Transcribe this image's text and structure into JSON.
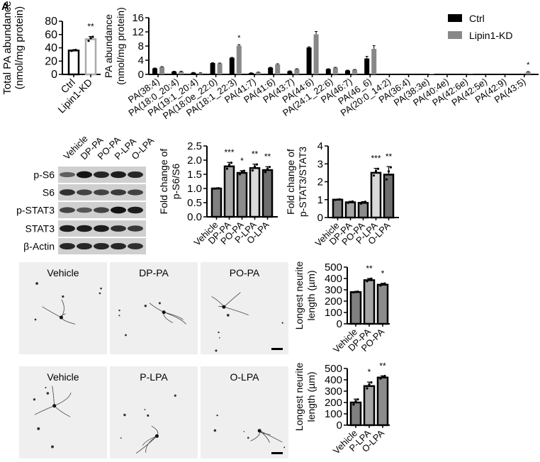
{
  "panel_label": "A",
  "chart_data": [
    {
      "id": "total-pa",
      "type": "bar",
      "ylabel": [
        "Total PA abundance",
        "(nmol/mg protein)"
      ],
      "categories": [
        "Ctrl",
        "Lipin1-KD"
      ],
      "values": [
        36,
        53
      ],
      "errors": [
        1,
        4
      ],
      "significance": [
        "",
        "**"
      ],
      "yticks": [
        0,
        20,
        40,
        60,
        80
      ],
      "ylim": [
        0,
        80
      ],
      "bar_fill": [
        "#ffffff",
        "#ffffff"
      ],
      "bar_stroke": [
        "#000000",
        "#aaaaaa"
      ]
    },
    {
      "id": "pa-species",
      "type": "bar",
      "ylabel": [
        "PA abundance",
        "(nmol/mg protein)"
      ],
      "categories": [
        "PA(38:4)",
        "PA(18:0_20:4)",
        "PA(19:1_20:4)",
        "PA(18:0e_22:0)",
        "PA(18:1_22:3)",
        "PA(41:7)",
        "PA(41:6)",
        "PA(43:7)",
        "PA(44:6)",
        "PA(24:1_22:6)",
        "PA(46:7)",
        "PA(46_6)",
        "PA(20:0_14:2)",
        "PA(36:4)",
        "PA(38:3e)",
        "PA(40:4e)",
        "PA(42:6e)",
        "PA(42:5e)",
        "PA(42:9)",
        "PA(43:5)"
      ],
      "series": [
        {
          "name": "Ctrl",
          "color": "#000000",
          "values": [
            1.7,
            0.8,
            0.5,
            3.2,
            4.7,
            0.4,
            1.9,
            0.9,
            7.6,
            1.5,
            1.1,
            4.5,
            0,
            0,
            0.05,
            0,
            0.1,
            0,
            0,
            0.2
          ]
        },
        {
          "name": "Lipin1-KD",
          "color": "#888888",
          "values": [
            2.1,
            0.8,
            0.4,
            3.1,
            8.1,
            0.6,
            2.8,
            1.5,
            11.3,
            1.9,
            1.3,
            7.2,
            0,
            0,
            0.2,
            0,
            0.1,
            0,
            0,
            0.7
          ]
        }
      ],
      "errors": [
        [
          0.1,
          0.1,
          0.05,
          0.1,
          0.1,
          0.05,
          0.1,
          0.1,
          0.2,
          0.1,
          0.1,
          0.6,
          0,
          0,
          0,
          0,
          0,
          0,
          0,
          0
        ],
        [
          0.1,
          0.1,
          0.05,
          0.1,
          0.3,
          0.05,
          0.2,
          0.1,
          0.8,
          0.1,
          0.1,
          0.9,
          0,
          0,
          0,
          0,
          0,
          0,
          0,
          0.1
        ]
      ],
      "significance": [
        "",
        "",
        "",
        "",
        "*",
        "",
        "",
        "",
        "",
        "",
        "",
        "",
        "",
        "",
        "",
        "",
        "",
        "",
        "",
        "*"
      ],
      "yticks": [
        0,
        4,
        8,
        12,
        16
      ],
      "ylim": [
        0,
        16
      ],
      "legend": "top-right"
    },
    {
      "id": "ps6",
      "type": "bar",
      "ylabel": [
        "Fold change of",
        "p-S6/S6"
      ],
      "categories": [
        "Vehicle",
        "DP-PA",
        "PO-PA",
        "P-LPA",
        "O-LPA"
      ],
      "values": [
        1.0,
        1.78,
        1.55,
        1.72,
        1.65
      ],
      "errors": [
        0.01,
        0.14,
        0.08,
        0.14,
        0.12
      ],
      "significance": [
        "",
        "***",
        "*",
        "**",
        "**"
      ],
      "yticks": [
        "0.0",
        "0.5",
        "1.0",
        "1.5",
        "2.0",
        "2.5"
      ],
      "ylim": [
        0,
        2.5
      ],
      "bar_fill": [
        "#808080",
        "#a6a6a6",
        "#8c8c8c",
        "#d9d9d9",
        "#6e6e6e"
      ]
    },
    {
      "id": "pstat3",
      "type": "bar",
      "ylabel": [
        "Fold change of",
        "p-STAT3/STAT3"
      ],
      "categories": [
        "Vehicle",
        "DP-PA",
        "PO-PA",
        "P-LPA",
        "O-LPA"
      ],
      "values": [
        1.0,
        0.85,
        0.82,
        2.5,
        2.4
      ],
      "errors": [
        0.02,
        0.05,
        0.07,
        0.25,
        0.45
      ],
      "significance": [
        "",
        "",
        "",
        "***",
        "**"
      ],
      "yticks": [
        0,
        1,
        2,
        3,
        4
      ],
      "ylim": [
        0,
        4
      ],
      "bar_fill": [
        "#808080",
        "#a6a6a6",
        "#8c8c8c",
        "#d9d9d9",
        "#6e6e6e"
      ]
    },
    {
      "id": "neurite-pa",
      "type": "bar",
      "ylabel": [
        "Longest neurite",
        "length (µm)"
      ],
      "categories": [
        "Vehicle",
        "DP-PA",
        "PO-PA"
      ],
      "values": [
        280,
        385,
        345
      ],
      "errors": [
        5,
        15,
        12
      ],
      "significance": [
        "",
        "**",
        "*"
      ],
      "yticks": [
        0,
        100,
        200,
        300,
        400,
        500
      ],
      "ylim": [
        0,
        500
      ],
      "bar_fill": [
        "#808080",
        "#a6a6a6",
        "#8c8c8c"
      ]
    },
    {
      "id": "neurite-lpa",
      "type": "bar",
      "ylabel": [
        "Longest neurite",
        "length (µm)"
      ],
      "categories": [
        "Vehicle",
        "P-LPA",
        "O-LPA"
      ],
      "values": [
        200,
        345,
        420
      ],
      "errors": [
        30,
        35,
        15
      ],
      "significance": [
        "",
        "*",
        "**"
      ],
      "yticks": [
        0,
        100,
        200,
        300,
        400,
        500
      ],
      "ylim": [
        0,
        500
      ],
      "bar_fill": [
        "#808080",
        "#a6a6a6",
        "#8c8c8c"
      ]
    }
  ],
  "western_blot": {
    "lanes": [
      "Vehicle",
      "DP-PA",
      "PO-PA",
      "P-LPA",
      "O-LPA"
    ],
    "rows": [
      "p-S6",
      "S6",
      "p-STAT3",
      "STAT3",
      "β-Actin"
    ]
  },
  "micrographs": {
    "row1": [
      "Vehicle",
      "DP-PA",
      "PO-PA"
    ],
    "row2": [
      "Vehicle",
      "P-LPA",
      "O-LPA"
    ]
  }
}
